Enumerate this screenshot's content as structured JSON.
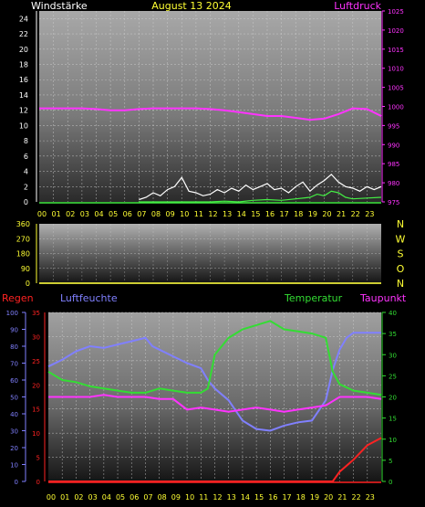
{
  "chart_data": [
    {
      "type": "line",
      "panel": "wind-pressure",
      "date_label": "August 13 2024",
      "left_label": "Windstärke",
      "right_label": "Luftdruck",
      "hours": [
        "00",
        "01",
        "02",
        "03",
        "04",
        "05",
        "06",
        "07",
        "08",
        "09",
        "10",
        "11",
        "12",
        "13",
        "14",
        "15",
        "16",
        "17",
        "18",
        "19",
        "20",
        "21",
        "22",
        "23"
      ],
      "left_axis": {
        "ylim": [
          0,
          25
        ],
        "ticks": [
          0,
          2,
          4,
          6,
          8,
          10,
          12,
          14,
          16,
          18,
          20,
          22,
          24
        ]
      },
      "right_axis": {
        "ylim": [
          975,
          1025
        ],
        "ticks": [
          975,
          980,
          985,
          990,
          995,
          1000,
          1005,
          1010,
          1015,
          1020,
          1025
        ]
      },
      "grid": true,
      "series": [
        {
          "color": "#ff33ff",
          "axis": "right",
          "x": [
            0,
            1,
            2,
            3,
            4,
            5,
            6,
            7,
            8,
            9,
            10,
            11,
            12,
            13,
            14,
            15,
            16,
            17,
            18,
            19,
            20,
            21,
            22,
            23,
            24
          ],
          "values": [
            999.5,
            999.5,
            999.5,
            999.5,
            999.3,
            999,
            999,
            999.3,
            999.5,
            999.5,
            999.5,
            999.5,
            999.3,
            999,
            998.5,
            998,
            997.5,
            997.5,
            997,
            996.5,
            996.8,
            998,
            999.5,
            999.3,
            997.5
          ]
        },
        {
          "color": "#ffffff",
          "axis": "left",
          "x": [
            7,
            7.5,
            8,
            8.5,
            9,
            9.5,
            10,
            10.5,
            11,
            11.5,
            12,
            12.5,
            13,
            13.5,
            14,
            14.5,
            15,
            15.5,
            16,
            16.5,
            17,
            17.5,
            18,
            18.5,
            19,
            19.5,
            20,
            20.5,
            21,
            21.5,
            22,
            22.5,
            23,
            23.5,
            24
          ],
          "values": [
            0.3,
            0.6,
            1.2,
            0.8,
            1.6,
            2,
            3.2,
            1.4,
            1.2,
            0.8,
            1,
            1.6,
            1.2,
            1.8,
            1.4,
            2.2,
            1.6,
            2,
            2.4,
            1.6,
            1.8,
            1.2,
            2,
            2.6,
            1.4,
            2.2,
            2.8,
            3.6,
            2.6,
            2,
            1.8,
            1.4,
            2,
            1.6,
            2
          ]
        },
        {
          "color": "#44ee44",
          "axis": "left",
          "x": [
            7,
            8,
            9,
            10,
            11,
            12,
            13,
            14,
            15,
            16,
            17,
            18,
            19,
            19.5,
            20,
            20.5,
            21,
            21.5,
            22,
            23,
            24
          ],
          "values": [
            0,
            0,
            0,
            0,
            0,
            0,
            0.1,
            0,
            0.2,
            0.3,
            0.2,
            0.4,
            0.6,
            1,
            0.8,
            1.4,
            1.2,
            0.6,
            0.4,
            0.5,
            0.6
          ]
        }
      ]
    },
    {
      "type": "line",
      "panel": "wind-direction",
      "left_axis": {
        "ylim": [
          0,
          360
        ],
        "ticks": [
          0,
          90,
          180,
          270,
          360
        ]
      },
      "direction_labels": [
        "N",
        "W",
        "S",
        "O",
        "N"
      ],
      "grid": true,
      "series": [
        {
          "color": "#cccc33",
          "axis": "left",
          "x": [
            0,
            24
          ],
          "values": [
            0,
            0
          ]
        }
      ]
    },
    {
      "type": "line",
      "panel": "rain-humidity-temperature",
      "labels": {
        "rain": "Regen",
        "humidity": "Luftfeuchte",
        "temperature": "Temperatur",
        "dewpoint": "Taupunkt"
      },
      "hours": [
        "00",
        "01",
        "02",
        "03",
        "04",
        "05",
        "06",
        "07",
        "08",
        "09",
        "10",
        "11",
        "12",
        "13",
        "14",
        "15",
        "16",
        "17",
        "18",
        "19",
        "20",
        "21",
        "22",
        "23"
      ],
      "humidity_axis": {
        "ylim": [
          0,
          100
        ],
        "ticks": [
          0,
          10,
          20,
          30,
          40,
          50,
          60,
          70,
          80,
          90,
          100
        ]
      },
      "rain_axis": {
        "ylim": [
          0,
          35
        ],
        "ticks": [
          0,
          5,
          10,
          15,
          20,
          25,
          30,
          35
        ]
      },
      "temperature_axis": {
        "ylim": [
          0,
          40
        ],
        "ticks": [
          0,
          5,
          10,
          15,
          20,
          25,
          30,
          35,
          40
        ]
      },
      "grid": true,
      "series": [
        {
          "color": "#8080ff",
          "axis": "humidity",
          "x": [
            0,
            1,
            2,
            3,
            4,
            5,
            6,
            7,
            7.5,
            8,
            9,
            10,
            11,
            11.5,
            12,
            13,
            14,
            15,
            16,
            17,
            18,
            19,
            20,
            20.5,
            21,
            21.5,
            22,
            23,
            24
          ],
          "values": [
            68,
            72,
            77,
            80,
            79,
            81,
            83,
            85,
            80,
            78,
            74,
            70,
            67,
            60,
            55,
            48,
            36,
            31,
            30,
            33,
            35,
            36,
            48,
            66,
            78,
            85,
            88,
            88,
            88
          ]
        },
        {
          "color": "#33dd33",
          "axis": "temperature",
          "x": [
            0,
            1,
            2,
            3,
            4,
            5,
            6,
            7,
            8,
            9,
            10,
            11,
            11.5,
            12,
            13,
            14,
            15,
            16,
            17,
            18,
            19,
            20,
            20.5,
            21,
            22,
            23,
            24
          ],
          "values": [
            26,
            24,
            23.5,
            22.5,
            22,
            21.5,
            21,
            21,
            22,
            21.5,
            21,
            21,
            22,
            30,
            34,
            36,
            37,
            38,
            36,
            35.5,
            35,
            34,
            26,
            23,
            21.5,
            21,
            20.5
          ]
        },
        {
          "color": "#ff33ff",
          "axis": "temperature",
          "x": [
            0,
            1,
            2,
            3,
            4,
            5,
            6,
            7,
            8,
            9,
            10,
            11,
            12,
            13,
            14,
            15,
            16,
            17,
            18,
            19,
            20,
            21,
            22,
            23,
            24
          ],
          "values": [
            20,
            20,
            20,
            20,
            20.5,
            20,
            20,
            20,
            19.5,
            19.5,
            17,
            17.5,
            17,
            16.5,
            17,
            17.5,
            17,
            16.5,
            17,
            17.5,
            18,
            20,
            20,
            20,
            19.5
          ]
        },
        {
          "color": "#ff2222",
          "axis": "rain",
          "x": [
            0,
            20.5,
            21,
            22,
            23,
            24
          ],
          "values": [
            0,
            0,
            2,
            4.5,
            7.5,
            9
          ]
        }
      ]
    }
  ]
}
